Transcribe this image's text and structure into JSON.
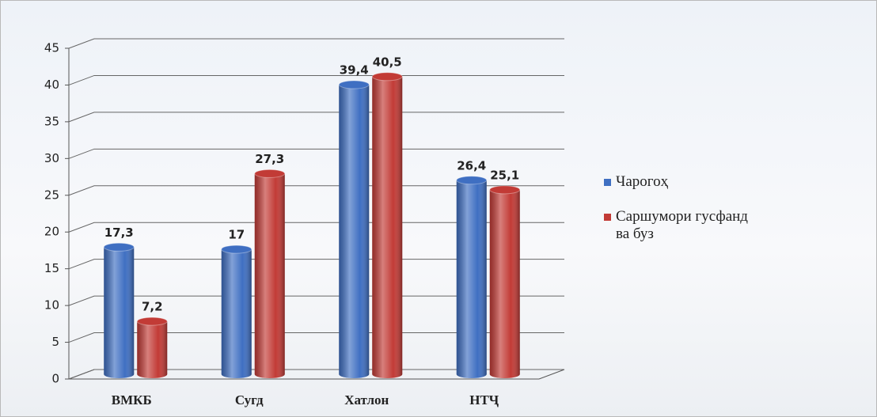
{
  "chart_data": {
    "type": "bar",
    "categories": [
      "ВМКБ",
      "Сугд",
      "Хатлон",
      "НТҶ"
    ],
    "series": [
      {
        "name": "Чарогоҳ",
        "color": "#3f6fc2",
        "values": [
          17.3,
          17,
          39.4,
          26.4
        ],
        "value_labels": [
          "17,3",
          "17",
          "39,4",
          "26,4"
        ]
      },
      {
        "name": "Саршумори гусфанд ва буз",
        "color": "#c23b36",
        "values": [
          7.2,
          27.3,
          40.5,
          25.1
        ],
        "value_labels": [
          "7,2",
          "27,3",
          "40,5",
          "25,1"
        ]
      }
    ],
    "ylim": [
      0,
      45
    ],
    "yticks": [
      0,
      5,
      10,
      15,
      20,
      25,
      30,
      35,
      40,
      45
    ],
    "grid": true,
    "legend": "right"
  }
}
